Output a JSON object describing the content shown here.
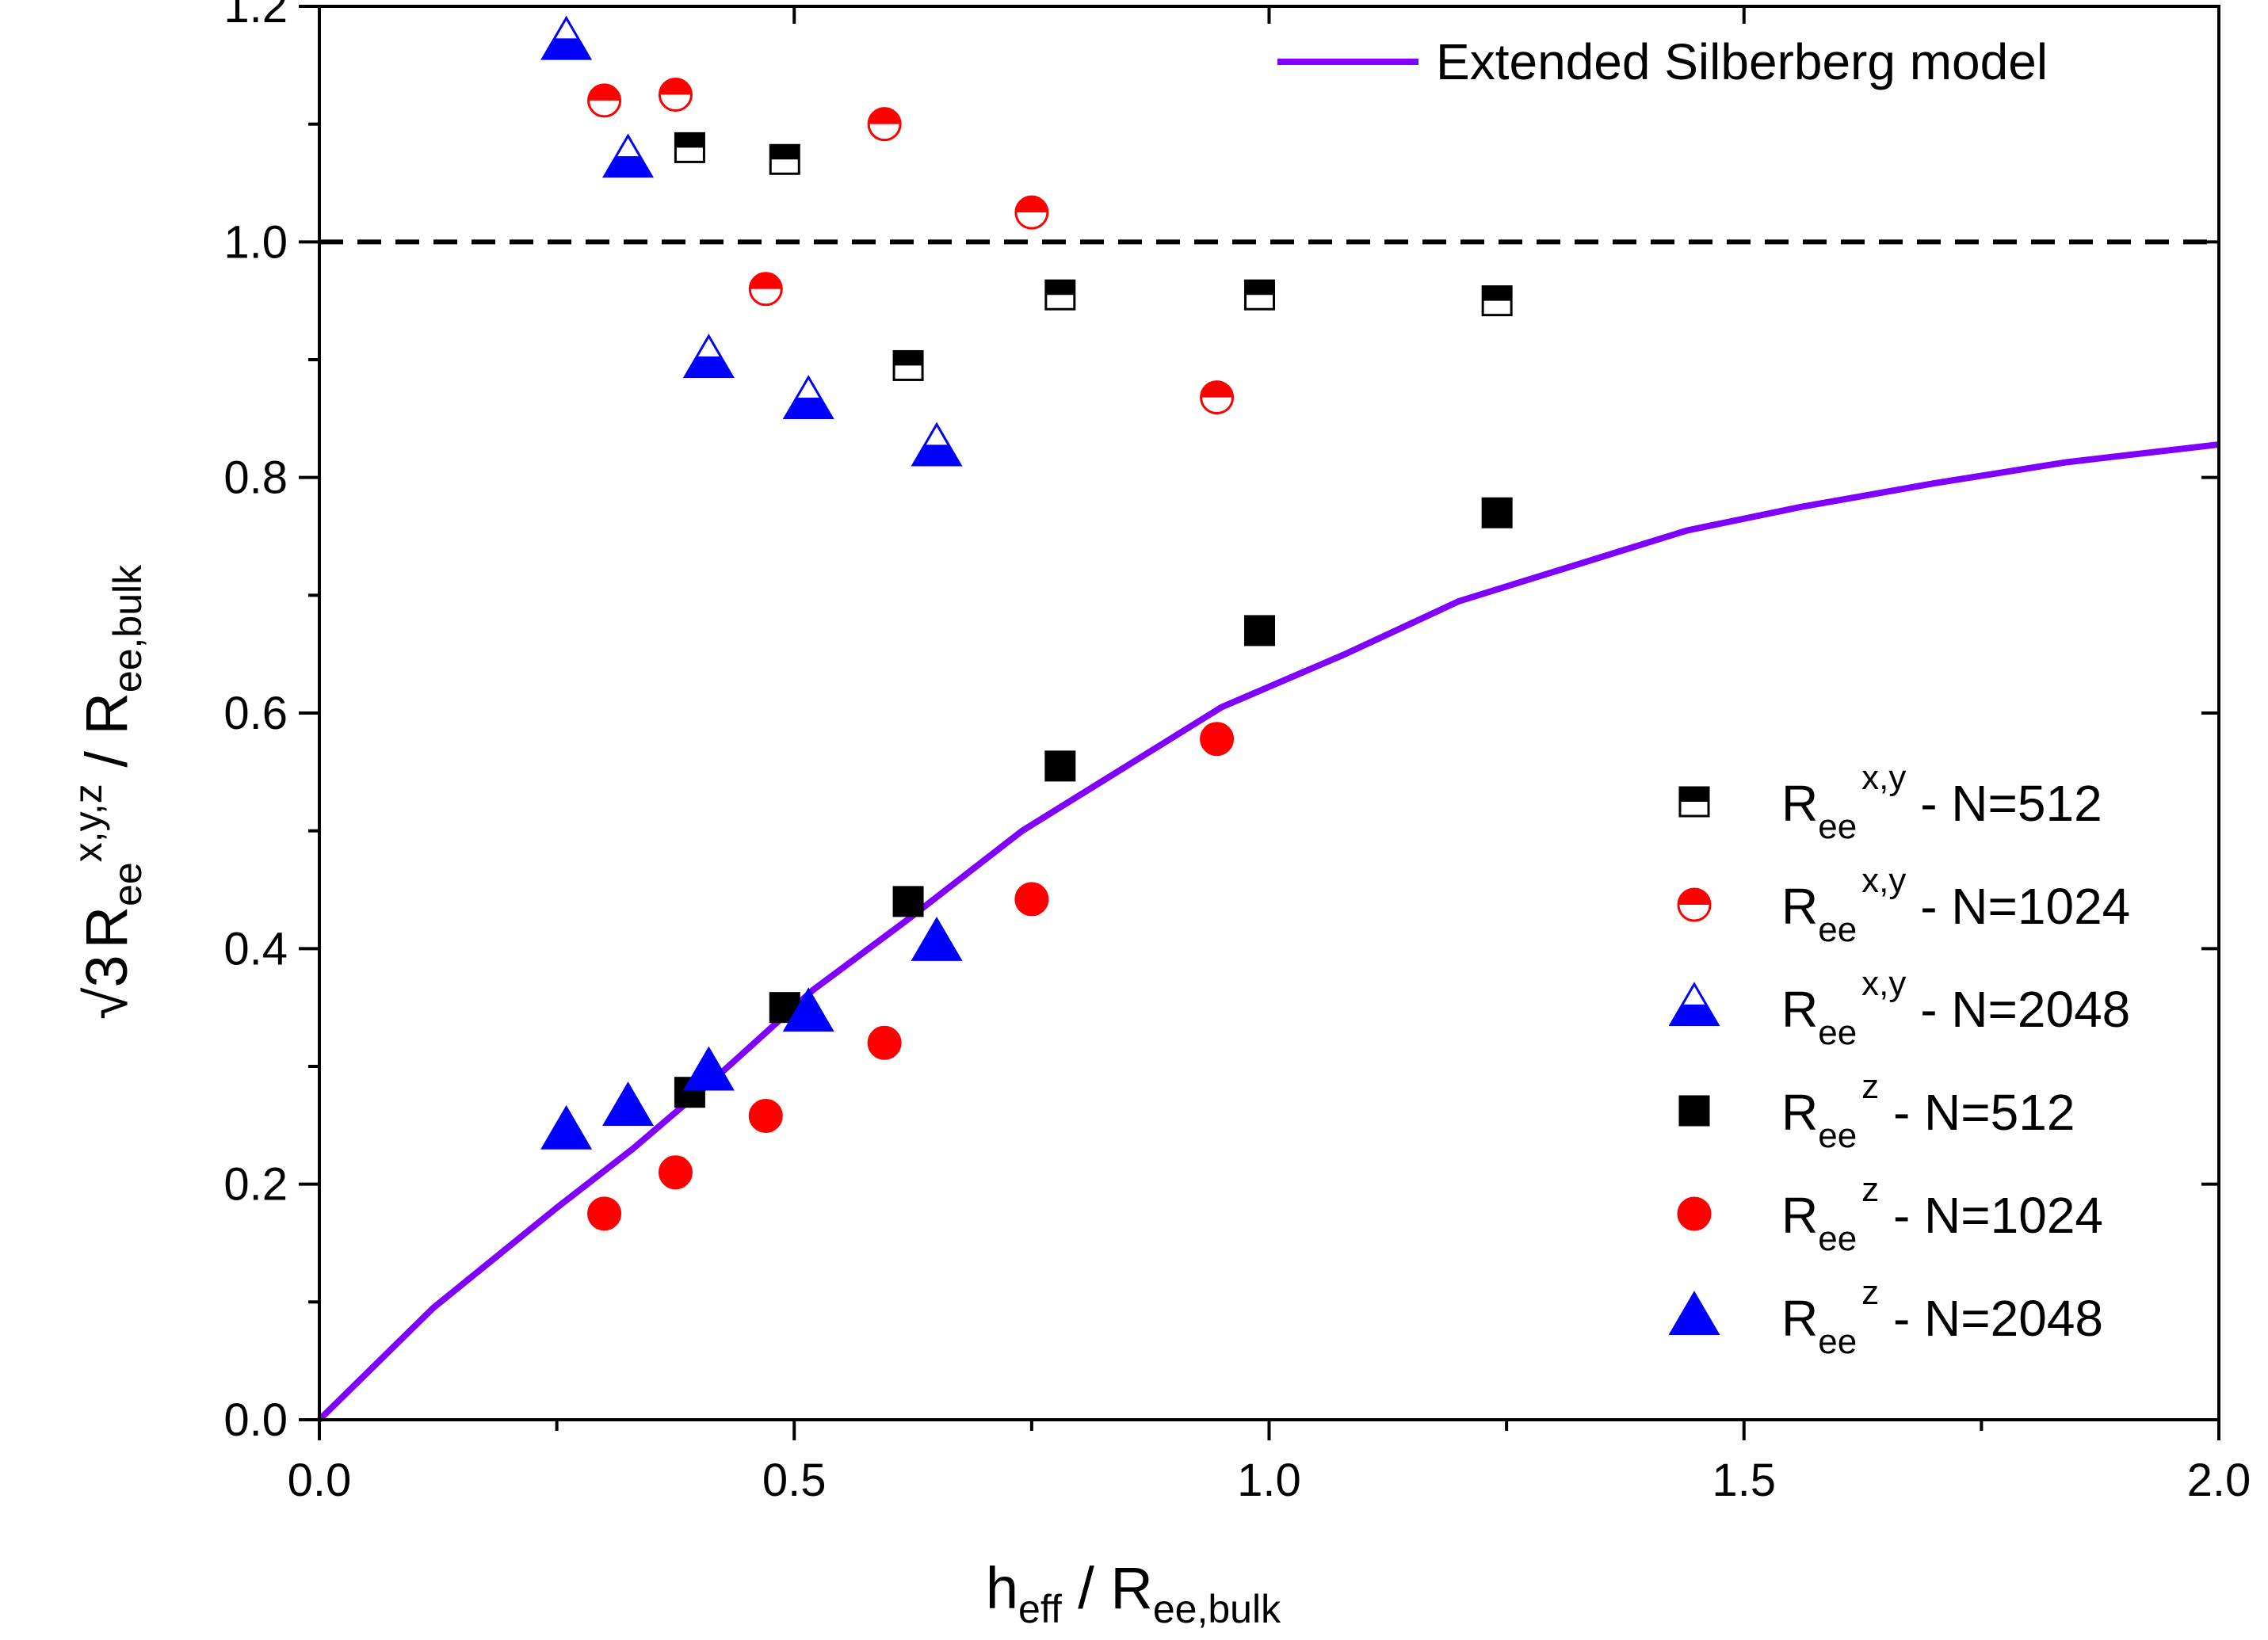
{
  "chart_data": {
    "type": "scatter",
    "title": "",
    "xlim": [
      0.0,
      2.0
    ],
    "ylim": [
      0.0,
      1.2
    ],
    "x_ticks": [
      "0.0",
      "0.5",
      "1.0",
      "1.5",
      "2.0"
    ],
    "y_ticks": [
      "0.0",
      "0.2",
      "0.4",
      "0.6",
      "0.8",
      "1.0",
      "1.2"
    ],
    "xlabel": {
      "main": "h",
      "sub1": "eff",
      "mid": " / R",
      "sub2": "ee,bulk"
    },
    "ylabel": {
      "root": "√3",
      "r": "R",
      "sub1": "ee",
      "sup": "x,y,z",
      "mid": " / R",
      "sub2": "ee,bulk"
    },
    "reference_line": {
      "y": 1.0,
      "style": "dashed",
      "color": "#000000"
    },
    "model": {
      "name": "Extended Silberberg model",
      "color": "#7f00ff",
      "x": [
        0.0,
        0.12,
        0.25,
        0.33,
        0.41,
        0.52,
        0.62,
        0.74,
        0.86,
        0.95,
        1.08,
        1.2,
        1.32,
        1.44,
        1.56,
        1.7,
        1.84,
        2.0
      ],
      "y": [
        0.0,
        0.095,
        0.18,
        0.23,
        0.285,
        0.365,
        0.425,
        0.5,
        0.56,
        0.605,
        0.65,
        0.695,
        0.725,
        0.755,
        0.775,
        0.795,
        0.813,
        0.828
      ]
    },
    "series": [
      {
        "name": "R_ee^x,y - N=512",
        "label_r": "R",
        "label_sub": "ee",
        "label_sup": "x,y",
        "label_suffix": " - N=512",
        "marker": "square",
        "fill": "half-top",
        "color": "#000000",
        "x": [
          0.39,
          0.49,
          0.62,
          0.78,
          0.99,
          1.24
        ],
        "y": [
          1.08,
          1.07,
          0.895,
          0.955,
          0.955,
          0.95
        ]
      },
      {
        "name": "R_ee^x,y - N=1024",
        "label_r": "R",
        "label_sub": "ee",
        "label_sup": "x,y",
        "label_suffix": " - N=1024",
        "marker": "circle",
        "fill": "half-top",
        "color": "#ff0000",
        "x": [
          0.3,
          0.375,
          0.47,
          0.595,
          0.75,
          0.945
        ],
        "y": [
          1.12,
          1.125,
          0.96,
          1.1,
          1.025,
          0.868
        ]
      },
      {
        "name": "R_ee^x,y - N=2048",
        "label_r": "R",
        "label_sub": "ee",
        "label_sup": "x,y",
        "label_suffix": " - N=2048",
        "marker": "triangle",
        "fill": "half-bottom",
        "color": "#0000ff",
        "x": [
          0.26,
          0.325,
          0.41,
          0.515,
          0.65
        ],
        "y": [
          1.17,
          1.07,
          0.9,
          0.865,
          0.825
        ]
      },
      {
        "name": "R_ee^z - N=512",
        "label_r": "R",
        "label_sub": "ee",
        "label_sup": "z",
        "label_suffix": " - N=512",
        "marker": "square",
        "fill": "solid",
        "color": "#000000",
        "x": [
          0.39,
          0.49,
          0.62,
          0.78,
          0.99,
          1.24
        ],
        "y": [
          0.278,
          0.35,
          0.44,
          0.555,
          0.67,
          0.77
        ]
      },
      {
        "name": "R_ee^z - N=1024",
        "label_r": "R",
        "label_sub": "ee",
        "label_sup": "z",
        "label_suffix": " - N=1024",
        "marker": "circle",
        "fill": "solid",
        "color": "#ff0000",
        "x": [
          0.3,
          0.375,
          0.47,
          0.595,
          0.75,
          0.945
        ],
        "y": [
          0.175,
          0.21,
          0.258,
          0.32,
          0.442,
          0.578
        ]
      },
      {
        "name": "R_ee^z - N=2048",
        "label_r": "R",
        "label_sub": "ee",
        "label_sup": "z",
        "label_suffix": " - N=2048",
        "marker": "triangle",
        "fill": "solid",
        "color": "#0000ff",
        "x": [
          0.26,
          0.325,
          0.41,
          0.515,
          0.65
        ],
        "y": [
          0.245,
          0.265,
          0.295,
          0.345,
          0.405
        ]
      }
    ],
    "legend": {
      "series_position": "right-middle",
      "model_position": "top-right"
    }
  }
}
